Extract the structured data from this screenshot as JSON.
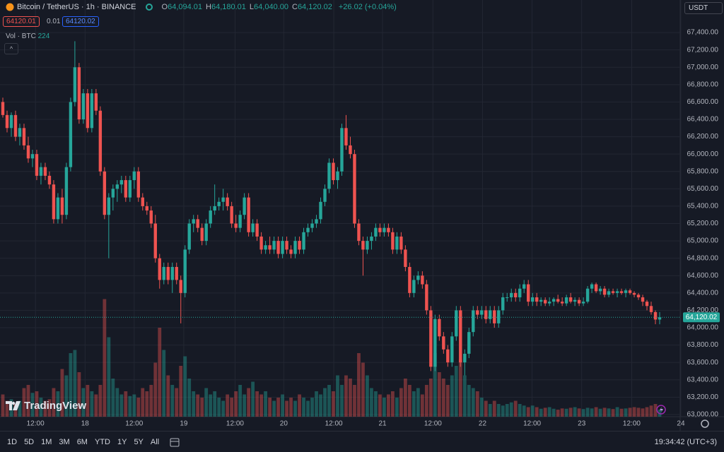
{
  "header": {
    "symbol": "Bitcoin / TetherUS · 1h · BINANCE",
    "ohlc": [
      {
        "key": "O",
        "value": "64,094.01"
      },
      {
        "key": "H",
        "value": "64,180.01"
      },
      {
        "key": "L",
        "value": "64,040.00"
      },
      {
        "key": "C",
        "value": "64,120.02"
      }
    ],
    "change": "+26.02 (+0.04%)",
    "sell": "64120.01",
    "spread": "0.01",
    "buy": "64120.02",
    "vol_label": "Vol · BTC",
    "vol_value": "224",
    "currency": "USDT"
  },
  "logo": "TradingView",
  "toolbar": {
    "ranges": [
      "1D",
      "5D",
      "1M",
      "3M",
      "6M",
      "YTD",
      "1Y",
      "5Y",
      "All"
    ],
    "clock": "19:34:42 (UTC+3)"
  },
  "chart_data": {
    "type": "candlestick",
    "up_color": "#26a69a",
    "down_color": "#ef5350",
    "grid": true,
    "last_price_label": "64,120.02",
    "ylim": [
      62975,
      67775
    ],
    "yticks": [
      {
        "value": 63000,
        "label": "63,000.00"
      },
      {
        "value": 63200,
        "label": "63,200.00"
      },
      {
        "value": 63400,
        "label": "63,400.00"
      },
      {
        "value": 63600,
        "label": "63,600.00"
      },
      {
        "value": 63800,
        "label": "63,800.00"
      },
      {
        "value": 64000,
        "label": "64,000.00"
      },
      {
        "value": 64200,
        "label": "64,200.00"
      },
      {
        "value": 64400,
        "label": "64,400.00"
      },
      {
        "value": 64600,
        "label": "64,600.00"
      },
      {
        "value": 64800,
        "label": "64,800.00"
      },
      {
        "value": 65000,
        "label": "65,000.00"
      },
      {
        "value": 65200,
        "label": "65,200.00"
      },
      {
        "value": 65400,
        "label": "65,400.00"
      },
      {
        "value": 65600,
        "label": "65,600.00"
      },
      {
        "value": 65800,
        "label": "65,800.00"
      },
      {
        "value": 66000,
        "label": "66,000.00"
      },
      {
        "value": 66200,
        "label": "66,200.00"
      },
      {
        "value": 66400,
        "label": "66,400.00"
      },
      {
        "value": 66600,
        "label": "66,600.00"
      },
      {
        "value": 66800,
        "label": "66,800.00"
      },
      {
        "value": 67000,
        "label": "67,000.00"
      },
      {
        "value": 67200,
        "label": "67,200.00"
      },
      {
        "value": 67400,
        "label": "67,400.00"
      }
    ],
    "xticks": [
      {
        "value": 7.7,
        "label": "12:00"
      },
      {
        "value": 19.4,
        "label": "18"
      },
      {
        "value": 31,
        "label": "12:00"
      },
      {
        "value": 42.7,
        "label": "19"
      },
      {
        "value": 54.8,
        "label": "12:00"
      },
      {
        "value": 66.3,
        "label": "20"
      },
      {
        "value": 78.1,
        "label": "12:00"
      },
      {
        "value": 89.6,
        "label": "21"
      },
      {
        "value": 101.5,
        "label": "12:00"
      },
      {
        "value": 113.2,
        "label": "22"
      },
      {
        "value": 124.9,
        "label": "12:00"
      },
      {
        "value": 136.6,
        "label": "23"
      },
      {
        "value": 148.4,
        "label": "12:00"
      },
      {
        "value": 160,
        "label": "24"
      }
    ],
    "volume_ylim": [
      0,
      4000
    ],
    "candles": [
      [
        66600,
        66650,
        66420,
        66450
      ],
      [
        66450,
        66500,
        66250,
        66300
      ],
      [
        66300,
        66480,
        66200,
        66450
      ],
      [
        66450,
        66500,
        66150,
        66200
      ],
      [
        66200,
        66350,
        66100,
        66300
      ],
      [
        66300,
        66350,
        66050,
        66100
      ],
      [
        66100,
        66200,
        65900,
        65950
      ],
      [
        65950,
        66050,
        65850,
        66000
      ],
      [
        66000,
        66050,
        65700,
        65750
      ],
      [
        65750,
        65900,
        65650,
        65850
      ],
      [
        65850,
        65900,
        65700,
        65750
      ],
      [
        65750,
        65800,
        65600,
        65650
      ],
      [
        65650,
        65700,
        65200,
        65250
      ],
      [
        65250,
        65550,
        65200,
        65500
      ],
      [
        65500,
        65600,
        65200,
        65300
      ],
      [
        65300,
        65900,
        65250,
        65850
      ],
      [
        65850,
        66650,
        65800,
        66600
      ],
      [
        66600,
        67300,
        66550,
        67000
      ],
      [
        67000,
        67050,
        66350,
        66400
      ],
      [
        66400,
        66750,
        66350,
        66700
      ],
      [
        66700,
        66750,
        66250,
        66300
      ],
      [
        66300,
        66750,
        66250,
        66700
      ],
      [
        66700,
        66750,
        66450,
        66500
      ],
      [
        66500,
        66550,
        65750,
        65800
      ],
      [
        65800,
        65850,
        65250,
        65300
      ],
      [
        65300,
        65550,
        64800,
        65500
      ],
      [
        65500,
        65650,
        65350,
        65600
      ],
      [
        65600,
        65700,
        65450,
        65650
      ],
      [
        65650,
        65750,
        65550,
        65700
      ],
      [
        65700,
        65750,
        65450,
        65500
      ],
      [
        65500,
        65750,
        65450,
        65700
      ],
      [
        65700,
        65850,
        65600,
        65800
      ],
      [
        65800,
        65850,
        65450,
        65500
      ],
      [
        65500,
        65550,
        65350,
        65400
      ],
      [
        65400,
        65450,
        65300,
        65350
      ],
      [
        65350,
        65400,
        65150,
        65200
      ],
      [
        65200,
        65300,
        64750,
        64800
      ],
      [
        64800,
        64850,
        64450,
        64550
      ],
      [
        64550,
        64750,
        64500,
        64700
      ],
      [
        64700,
        64750,
        64500,
        64550
      ],
      [
        64550,
        64750,
        64400,
        64700
      ],
      [
        64700,
        64750,
        64500,
        64550
      ],
      [
        64550,
        64600,
        64050,
        64400
      ],
      [
        64400,
        64950,
        64350,
        64900
      ],
      [
        64900,
        65250,
        64850,
        65200
      ],
      [
        65200,
        65300,
        65100,
        65250
      ],
      [
        65250,
        65300,
        65100,
        65150
      ],
      [
        65150,
        65200,
        64950,
        65000
      ],
      [
        65000,
        65250,
        64950,
        65200
      ],
      [
        65200,
        65400,
        65150,
        65350
      ],
      [
        65350,
        65650,
        65300,
        65400
      ],
      [
        65400,
        65500,
        65350,
        65450
      ],
      [
        65450,
        65600,
        65350,
        65500
      ],
      [
        65500,
        65550,
        65350,
        65400
      ],
      [
        65400,
        65450,
        65150,
        65200
      ],
      [
        65200,
        65300,
        65100,
        65150
      ],
      [
        65150,
        65350,
        65100,
        65300
      ],
      [
        65300,
        65550,
        65250,
        65500
      ],
      [
        65500,
        65550,
        65050,
        65100
      ],
      [
        65100,
        65250,
        65050,
        65200
      ],
      [
        65200,
        65250,
        65000,
        65050
      ],
      [
        65050,
        65100,
        64850,
        64900
      ],
      [
        64900,
        65000,
        64850,
        64950
      ],
      [
        64950,
        65050,
        64850,
        64900
      ],
      [
        64900,
        65050,
        64850,
        65000
      ],
      [
        65000,
        65050,
        64800,
        64850
      ],
      [
        64850,
        65050,
        64800,
        65000
      ],
      [
        65000,
        65050,
        64850,
        64900
      ],
      [
        64900,
        64950,
        64800,
        64850
      ],
      [
        64850,
        65050,
        64800,
        65000
      ],
      [
        65000,
        65050,
        64850,
        64900
      ],
      [
        64900,
        65150,
        64850,
        65100
      ],
      [
        65100,
        65200,
        65050,
        65150
      ],
      [
        65150,
        65250,
        65100,
        65200
      ],
      [
        65200,
        65300,
        65150,
        65250
      ],
      [
        65250,
        65500,
        65200,
        65450
      ],
      [
        65450,
        65650,
        65400,
        65600
      ],
      [
        65600,
        65950,
        65550,
        65900
      ],
      [
        65900,
        65950,
        65650,
        65700
      ],
      [
        65700,
        65850,
        65600,
        65800
      ],
      [
        65800,
        66350,
        65750,
        66300
      ],
      [
        66300,
        66450,
        66050,
        66100
      ],
      [
        66100,
        66200,
        65950,
        66000
      ],
      [
        66000,
        66050,
        65150,
        65200
      ],
      [
        65200,
        65250,
        64950,
        65000
      ],
      [
        65000,
        65050,
        64600,
        64900
      ],
      [
        64900,
        65050,
        64850,
        65000
      ],
      [
        65000,
        65100,
        64900,
        65050
      ],
      [
        65050,
        65200,
        65000,
        65150
      ],
      [
        65150,
        65200,
        65050,
        65100
      ],
      [
        65100,
        65200,
        65050,
        65150
      ],
      [
        65150,
        65200,
        65050,
        65100
      ],
      [
        65100,
        65150,
        64850,
        64900
      ],
      [
        64900,
        65100,
        64850,
        65050
      ],
      [
        65050,
        65100,
        64850,
        64900
      ],
      [
        64900,
        64950,
        64650,
        64700
      ],
      [
        64700,
        64750,
        64350,
        64400
      ],
      [
        64400,
        64600,
        64350,
        64550
      ],
      [
        64550,
        64650,
        64500,
        64600
      ],
      [
        64600,
        64650,
        64450,
        64500
      ],
      [
        64500,
        64550,
        64150,
        64200
      ],
      [
        64200,
        64250,
        63500,
        63550
      ],
      [
        63550,
        64150,
        63500,
        64100
      ],
      [
        64100,
        64150,
        63850,
        63900
      ],
      [
        63900,
        63950,
        63700,
        63750
      ],
      [
        63750,
        63800,
        63550,
        63600
      ],
      [
        63600,
        63950,
        63550,
        63900
      ],
      [
        63900,
        64250,
        63850,
        64200
      ],
      [
        64200,
        64250,
        63550,
        63600
      ],
      [
        63600,
        63750,
        63450,
        63700
      ],
      [
        63700,
        64000,
        63650,
        63950
      ],
      [
        63950,
        64250,
        63900,
        64200
      ],
      [
        64200,
        64250,
        64100,
        64150
      ],
      [
        64150,
        64250,
        64100,
        64200
      ],
      [
        64200,
        64250,
        64050,
        64100
      ],
      [
        64100,
        64250,
        64050,
        64200
      ],
      [
        64200,
        64250,
        64000,
        64050
      ],
      [
        64050,
        64250,
        64000,
        64200
      ],
      [
        64200,
        64400,
        64150,
        64350
      ],
      [
        64350,
        64400,
        64300,
        64350
      ],
      [
        64350,
        64450,
        64300,
        64400
      ],
      [
        64400,
        64450,
        64300,
        64350
      ],
      [
        64350,
        64500,
        64300,
        64450
      ],
      [
        64450,
        64550,
        64400,
        64500
      ],
      [
        64500,
        64550,
        64250,
        64300
      ],
      [
        64300,
        64400,
        64250,
        64350
      ],
      [
        64350,
        64400,
        64250,
        64300
      ],
      [
        64300,
        64350,
        64250,
        64320
      ],
      [
        64320,
        64350,
        64250,
        64280
      ],
      [
        64280,
        64350,
        64250,
        64300
      ],
      [
        64300,
        64350,
        64250,
        64330
      ],
      [
        64330,
        64380,
        64280,
        64300
      ],
      [
        64300,
        64350,
        64250,
        64280
      ],
      [
        64280,
        64380,
        64250,
        64350
      ],
      [
        64350,
        64400,
        64280,
        64300
      ],
      [
        64300,
        64350,
        64250,
        64320
      ],
      [
        64320,
        64350,
        64250,
        64280
      ],
      [
        64280,
        64350,
        64250,
        64300
      ],
      [
        64300,
        64480,
        64280,
        64450
      ],
      [
        64450,
        64520,
        64400,
        64500
      ],
      [
        64500,
        64520,
        64400,
        64420
      ],
      [
        64420,
        64480,
        64380,
        64450
      ],
      [
        64450,
        64480,
        64350,
        64380
      ],
      [
        64380,
        64450,
        64350,
        64420
      ],
      [
        64420,
        64450,
        64380,
        64400
      ],
      [
        64400,
        64450,
        64350,
        64420
      ],
      [
        64420,
        64450,
        64380,
        64400
      ],
      [
        64400,
        64450,
        64350,
        64430
      ],
      [
        64430,
        64450,
        64380,
        64400
      ],
      [
        64400,
        64420,
        64350,
        64380
      ],
      [
        64380,
        64400,
        64320,
        64350
      ],
      [
        64350,
        64380,
        64250,
        64300
      ],
      [
        64300,
        64320,
        64200,
        64250
      ],
      [
        64250,
        64300,
        64150,
        64180
      ],
      [
        64180,
        64200,
        64040,
        64094
      ],
      [
        64094.01,
        64180.01,
        64040,
        64120.02
      ]
    ],
    "volume": [
      700,
      500,
      550,
      400,
      500,
      900,
      1000,
      750,
      800,
      600,
      500,
      550,
      900,
      800,
      1500,
      1300,
      2000,
      2100,
      1400,
      900,
      1000,
      800,
      700,
      1000,
      3700,
      2500,
      1200,
      900,
      700,
      800,
      650,
      700,
      600,
      900,
      800,
      1000,
      1700,
      2800,
      2100,
      1300,
      1000,
      900,
      1600,
      1900,
      1200,
      800,
      700,
      600,
      900,
      700,
      800,
      600,
      500,
      700,
      600,
      800,
      1000,
      700,
      900,
      1100,
      800,
      700,
      800,
      600,
      500,
      600,
      700,
      500,
      600,
      500,
      700,
      600,
      500,
      600,
      800,
      700,
      900,
      1000,
      800,
      1300,
      1000,
      1300,
      1200,
      1000,
      2000,
      1700,
      1300,
      900,
      800,
      700,
      600,
      700,
      800,
      600,
      900,
      1200,
      1000,
      800,
      900,
      700,
      1000,
      1200,
      2000,
      1400,
      1200,
      1000,
      1300,
      1600,
      1800,
      1300,
      1000,
      900,
      800,
      600,
      500,
      400,
      500,
      400,
      350,
      400,
      450,
      500,
      400,
      350,
      300,
      350,
      300,
      250,
      280,
      300,
      250,
      220,
      260,
      250,
      280,
      300,
      260,
      240,
      280,
      260,
      300,
      250,
      280,
      260,
      240,
      300,
      250,
      260,
      280,
      300,
      280,
      260,
      300,
      350,
      400,
      224
    ]
  }
}
